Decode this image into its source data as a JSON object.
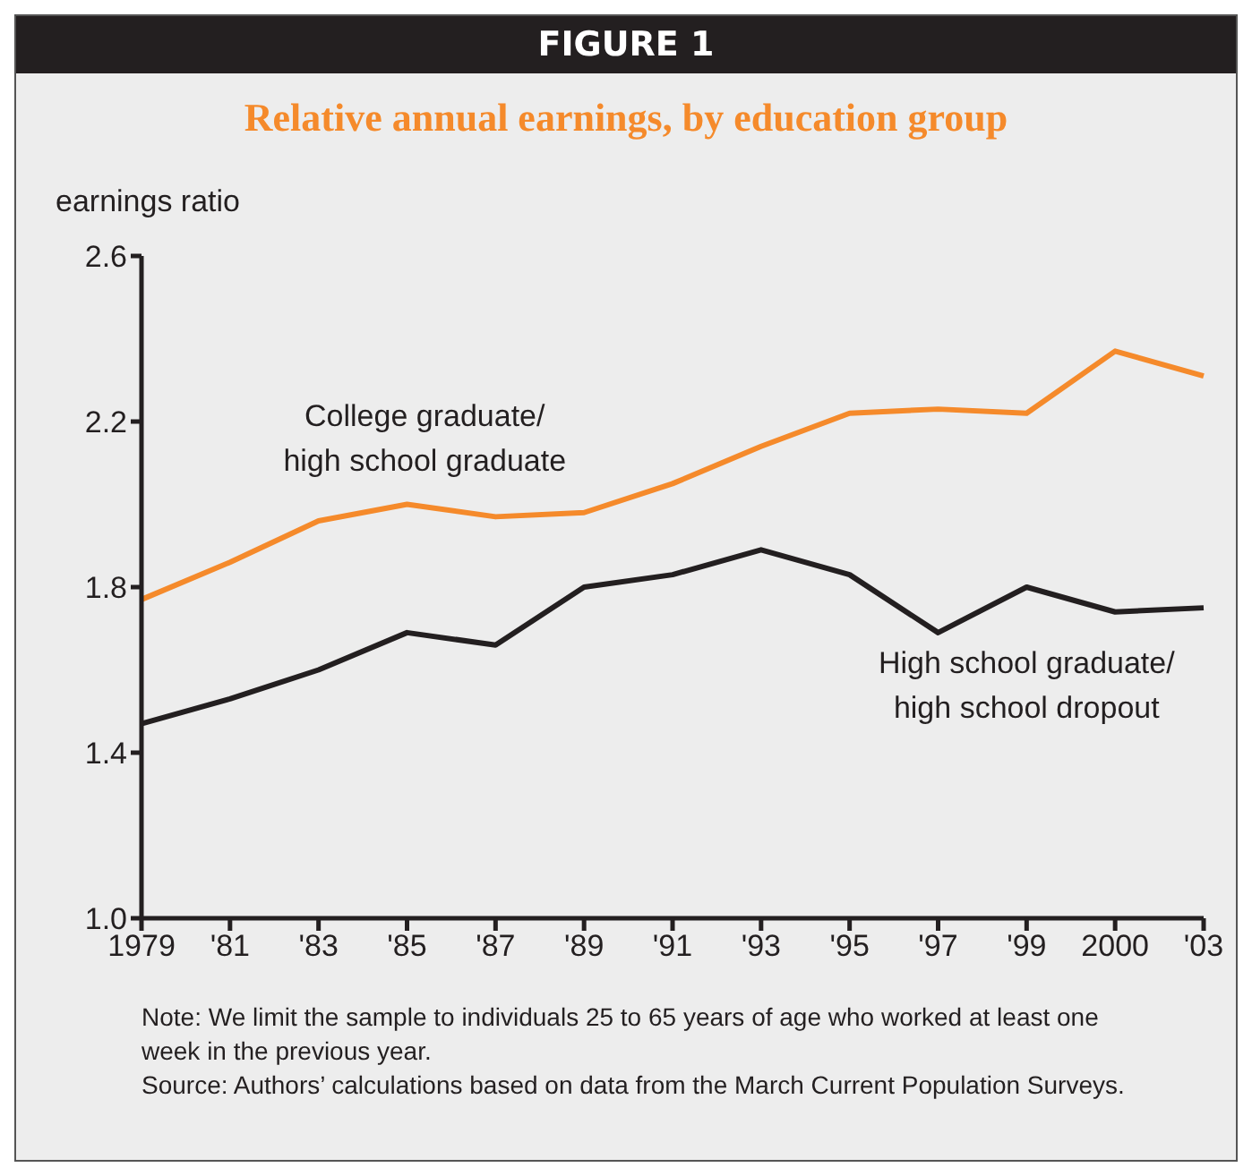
{
  "chart_data": {
    "type": "line",
    "title": "FIGURE 1",
    "subtitle": "Relative annual earnings, by education group",
    "ylabel": "earnings ratio",
    "categories": [
      "1979",
      "'81",
      "'83",
      "'85",
      "'87",
      "'89",
      "'91",
      "'93",
      "'95",
      "'97",
      "'99",
      "2000",
      "'03"
    ],
    "series": [
      {
        "name": "College graduate/ high school graduate",
        "color": "#f58a2b",
        "values": [
          1.77,
          1.86,
          1.96,
          2.0,
          1.97,
          1.98,
          2.05,
          2.14,
          2.22,
          2.23,
          2.22,
          2.37,
          2.31
        ]
      },
      {
        "name": "High school graduate/ high school dropout",
        "color": "#231f20",
        "values": [
          1.47,
          1.53,
          1.6,
          1.69,
          1.66,
          1.8,
          1.83,
          1.89,
          1.83,
          1.69,
          1.8,
          1.74,
          1.75
        ]
      }
    ],
    "ylim": [
      1.0,
      2.6
    ],
    "yticks": [
      {
        "value": 1.0,
        "label": "1.0"
      },
      {
        "value": 1.4,
        "label": "1.4"
      },
      {
        "value": 1.8,
        "label": "1.8"
      },
      {
        "value": 2.2,
        "label": "2.2"
      },
      {
        "value": 2.6,
        "label": "2.6"
      }
    ],
    "grid": false,
    "marker": "none",
    "line_style": "solid",
    "annotations": [
      "Note: We limit the sample to individuals 25 to 65 years of age who worked at least one week in the previous year.",
      "Source: Authors’ calculations based on data from the March Current Population Surveys."
    ]
  }
}
